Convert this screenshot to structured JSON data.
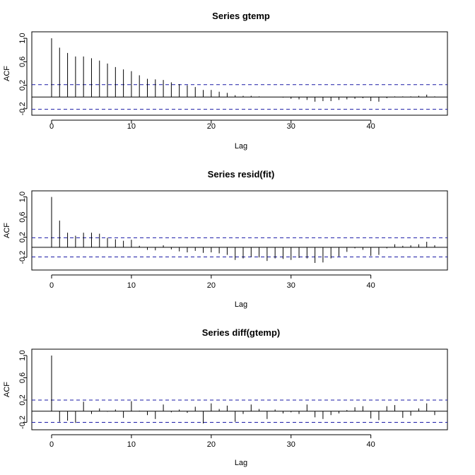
{
  "chart_data": [
    {
      "type": "bar",
      "title": "Series  gtemp",
      "xlabel": "Lag",
      "ylabel": "ACF",
      "xlim": [
        0,
        48
      ],
      "ylim": [
        -0.25,
        1.05
      ],
      "xticks": [
        0,
        10,
        20,
        30,
        40
      ],
      "yticks": [
        -0.2,
        0.2,
        0.6,
        1.0
      ],
      "ytick_labels": [
        "-0.2",
        "0.2",
        "0.6",
        "1.0"
      ],
      "ci": 0.21,
      "lags": [
        0,
        1,
        2,
        3,
        4,
        5,
        6,
        7,
        8,
        9,
        10,
        11,
        12,
        13,
        14,
        15,
        16,
        17,
        18,
        19,
        20,
        21,
        22,
        23,
        24,
        25,
        26,
        27,
        28,
        29,
        30,
        31,
        32,
        33,
        34,
        35,
        36,
        37,
        38,
        39,
        40,
        41,
        42,
        43,
        44,
        45,
        46,
        47,
        48
      ],
      "values": [
        1.0,
        0.84,
        0.75,
        0.69,
        0.69,
        0.66,
        0.62,
        0.57,
        0.51,
        0.47,
        0.44,
        0.37,
        0.31,
        0.3,
        0.29,
        0.25,
        0.22,
        0.2,
        0.17,
        0.12,
        0.12,
        0.09,
        0.07,
        0.03,
        0.02,
        0.02,
        0.01,
        0.0,
        0.0,
        -0.01,
        -0.03,
        -0.04,
        -0.05,
        -0.08,
        -0.07,
        -0.07,
        -0.05,
        -0.04,
        -0.03,
        -0.02,
        -0.07,
        -0.08,
        -0.02,
        0.01,
        0.01,
        0.01,
        0.02,
        0.04,
        0.01
      ]
    },
    {
      "type": "bar",
      "title": "Series  resid(fit)",
      "xlabel": "Lag",
      "ylabel": "ACF",
      "xlim": [
        0,
        48
      ],
      "ylim": [
        -0.38,
        1.05
      ],
      "xticks": [
        0,
        10,
        20,
        30,
        40
      ],
      "yticks": [
        -0.2,
        0.2,
        0.6,
        1.0
      ],
      "ytick_labels": [
        "-0.2",
        "0.2",
        "0.6",
        "1.0"
      ],
      "ci": 0.19,
      "lags": [
        0,
        1,
        2,
        3,
        4,
        5,
        6,
        7,
        8,
        9,
        10,
        11,
        12,
        13,
        14,
        15,
        16,
        17,
        18,
        19,
        20,
        21,
        22,
        23,
        24,
        25,
        26,
        27,
        28,
        29,
        30,
        31,
        32,
        33,
        34,
        35,
        36,
        37,
        38,
        39,
        40,
        41,
        42,
        43,
        44,
        45,
        46,
        47,
        48
      ],
      "values": [
        1.0,
        0.53,
        0.29,
        0.23,
        0.29,
        0.29,
        0.27,
        0.19,
        0.16,
        0.13,
        0.15,
        0.03,
        -0.05,
        -0.06,
        0.04,
        -0.04,
        -0.08,
        -0.1,
        -0.07,
        -0.11,
        -0.1,
        -0.12,
        -0.15,
        -0.25,
        -0.22,
        -0.19,
        -0.2,
        -0.27,
        -0.22,
        -0.23,
        -0.25,
        -0.21,
        -0.22,
        -0.31,
        -0.3,
        -0.22,
        -0.18,
        -0.09,
        -0.02,
        -0.05,
        -0.17,
        -0.15,
        -0.02,
        0.06,
        0.03,
        0.04,
        0.06,
        0.11,
        0.04
      ]
    },
    {
      "type": "bar",
      "title": "Series  diff(gtemp)",
      "xlabel": "Lag",
      "ylabel": "ACF",
      "xlim": [
        0,
        48
      ],
      "ylim": [
        -0.27,
        1.05
      ],
      "xticks": [
        0,
        10,
        20,
        30,
        40
      ],
      "yticks": [
        -0.2,
        0.2,
        0.6,
        1.0
      ],
      "ytick_labels": [
        "-0.2",
        "0.2",
        "0.6",
        "1.0"
      ],
      "ci": 0.2,
      "lags": [
        0,
        1,
        2,
        3,
        4,
        5,
        6,
        7,
        8,
        9,
        10,
        11,
        12,
        13,
        14,
        15,
        16,
        17,
        18,
        19,
        20,
        21,
        22,
        23,
        24,
        25,
        26,
        27,
        28,
        29,
        30,
        31,
        32,
        33,
        34,
        35,
        36,
        37,
        38,
        39,
        40,
        41,
        42,
        43,
        44,
        45,
        46,
        47,
        48
      ],
      "values": [
        1.0,
        -0.19,
        -0.17,
        -0.21,
        0.17,
        -0.05,
        0.05,
        -0.01,
        0.03,
        -0.12,
        0.18,
        0.01,
        -0.07,
        -0.14,
        0.12,
        -0.02,
        0.03,
        -0.03,
        0.08,
        -0.22,
        0.14,
        0.04,
        0.1,
        -0.19,
        -0.05,
        0.12,
        0.04,
        -0.14,
        0.03,
        -0.04,
        -0.02,
        -0.05,
        0.12,
        -0.11,
        -0.14,
        -0.07,
        -0.04,
        0.02,
        0.07,
        0.09,
        -0.13,
        -0.16,
        0.09,
        0.11,
        -0.12,
        -0.08,
        0.05,
        0.14,
        -0.07
      ]
    }
  ]
}
